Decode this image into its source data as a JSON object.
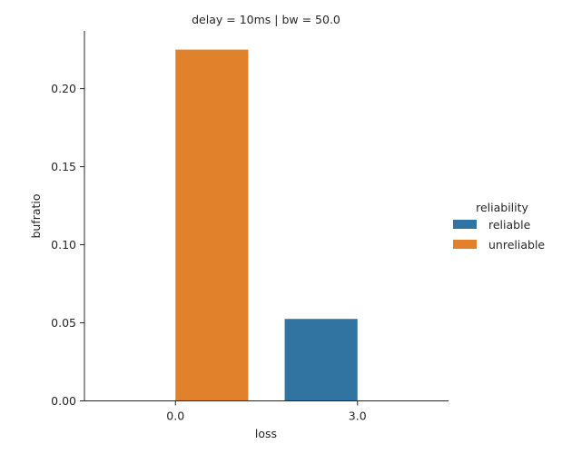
{
  "chart_data": {
    "type": "bar",
    "title": "delay = 10ms | bw = 50.0",
    "xlabel": "loss",
    "ylabel": "bufratio",
    "categories": [
      "0.0",
      "3.0"
    ],
    "series": [
      {
        "name": "reliable",
        "color": "#3274a1",
        "values": [
          0.0,
          0.0525
        ]
      },
      {
        "name": "unreliable",
        "color": "#e1812c",
        "values": [
          0.225,
          0.0
        ]
      }
    ],
    "ylim": [
      0,
      0.237
    ],
    "yticks": [
      0.0,
      0.05,
      0.1,
      0.15,
      0.2
    ],
    "ytick_labels": [
      "0.00",
      "0.05",
      "0.10",
      "0.15",
      "0.20"
    ],
    "legend": {
      "title": "reliability",
      "placement": "right"
    },
    "grid": false
  }
}
